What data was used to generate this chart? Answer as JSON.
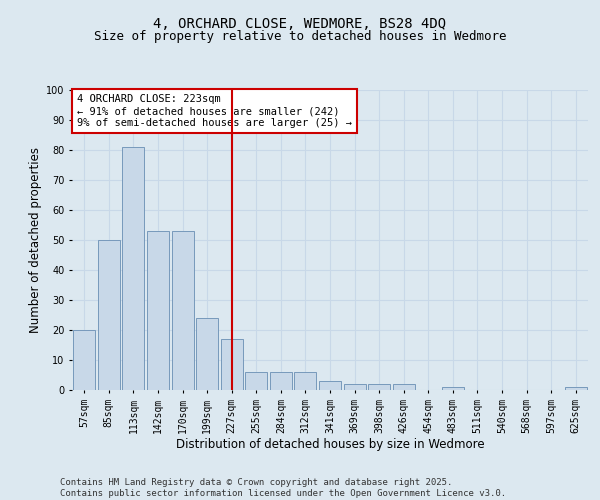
{
  "title_line1": "4, ORCHARD CLOSE, WEDMORE, BS28 4DQ",
  "title_line2": "Size of property relative to detached houses in Wedmore",
  "xlabel": "Distribution of detached houses by size in Wedmore",
  "ylabel": "Number of detached properties",
  "bar_color": "#c8d8e8",
  "bar_edge_color": "#7799bb",
  "categories": [
    "57sqm",
    "85sqm",
    "113sqm",
    "142sqm",
    "170sqm",
    "199sqm",
    "227sqm",
    "255sqm",
    "284sqm",
    "312sqm",
    "341sqm",
    "369sqm",
    "398sqm",
    "426sqm",
    "454sqm",
    "483sqm",
    "511sqm",
    "540sqm",
    "568sqm",
    "597sqm",
    "625sqm"
  ],
  "values": [
    20,
    50,
    81,
    53,
    53,
    24,
    17,
    6,
    6,
    6,
    3,
    2,
    2,
    2,
    0,
    1,
    0,
    0,
    0,
    0,
    1
  ],
  "vline_x": 6,
  "vline_color": "#cc0000",
  "annotation_text": "4 ORCHARD CLOSE: 223sqm\n← 91% of detached houses are smaller (242)\n9% of semi-detached houses are larger (25) →",
  "annotation_box_color": "#ffffff",
  "annotation_box_edge_color": "#cc0000",
  "ylim": [
    0,
    100
  ],
  "yticks": [
    0,
    10,
    20,
    30,
    40,
    50,
    60,
    70,
    80,
    90,
    100
  ],
  "grid_color": "#c8d8e8",
  "background_color": "#dce8f0",
  "footer_line1": "Contains HM Land Registry data © Crown copyright and database right 2025.",
  "footer_line2": "Contains public sector information licensed under the Open Government Licence v3.0.",
  "title_fontsize": 10,
  "subtitle_fontsize": 9,
  "axis_label_fontsize": 8.5,
  "tick_fontsize": 7,
  "annotation_fontsize": 7.5,
  "footer_fontsize": 6.5
}
